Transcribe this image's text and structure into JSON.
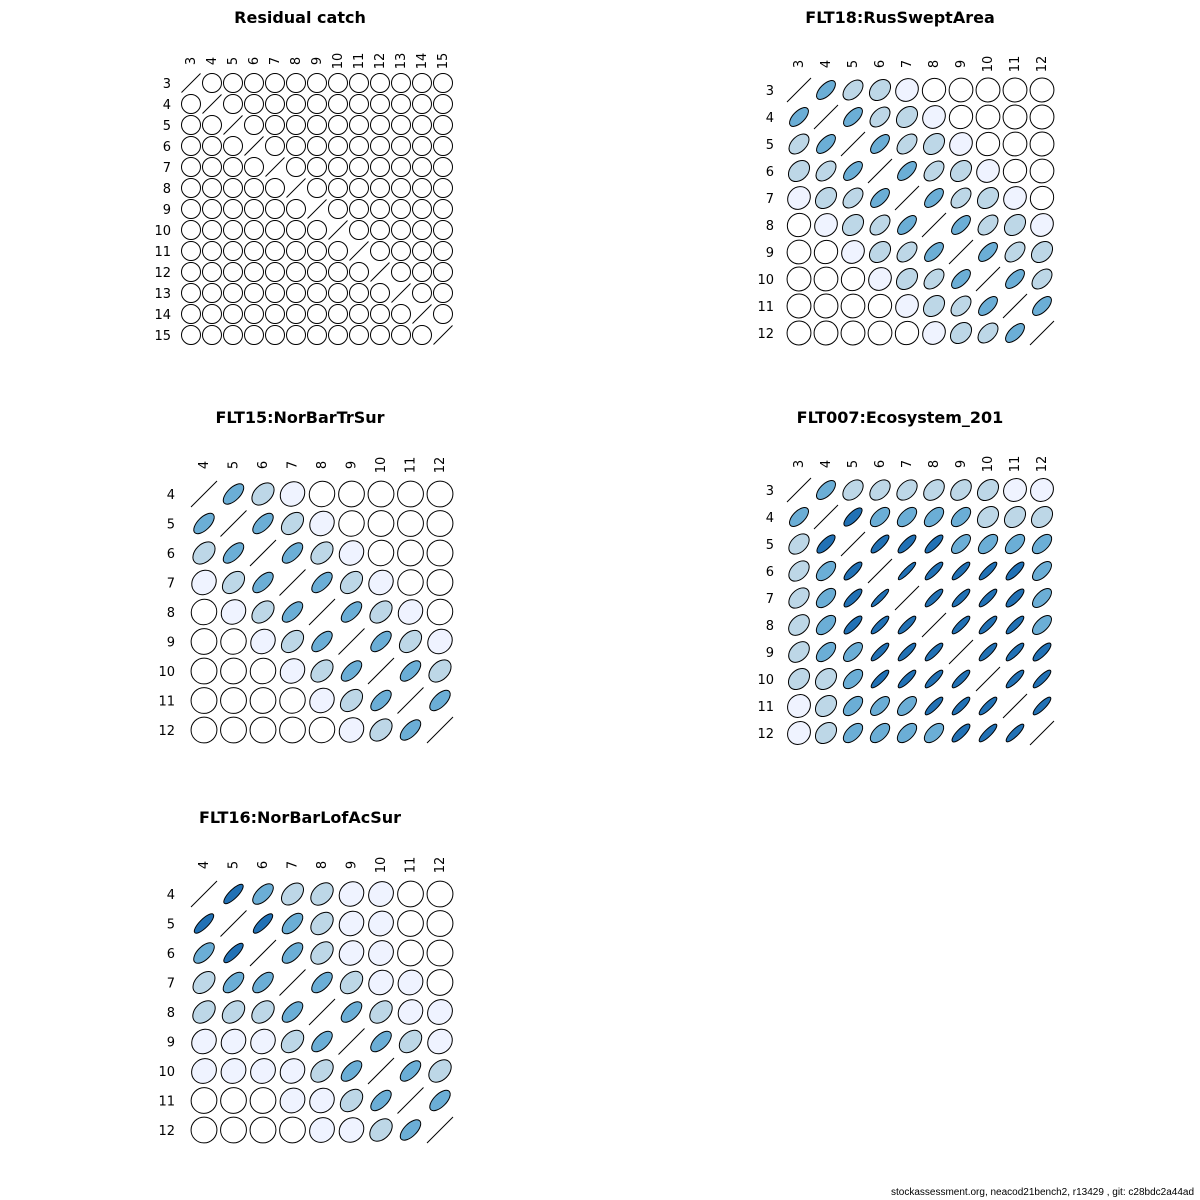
{
  "chart_data": [
    {
      "type": "heatmap",
      "title": "Residual catch",
      "labels": [
        "3",
        "4",
        "5",
        "6",
        "7",
        "8",
        "9",
        "10",
        "11",
        "12",
        "13",
        "14",
        "15"
      ],
      "correlation": "zero",
      "value": 0
    },
    {
      "type": "heatmap",
      "title": "FLT18:RusSweptArea",
      "labels": [
        "3",
        "4",
        "5",
        "6",
        "7",
        "8",
        "9",
        "10",
        "11",
        "12"
      ],
      "correlation": "lags",
      "lags": [
        1,
        0.62,
        0.45,
        0.3,
        0.12,
        0.06,
        0.02,
        0.01,
        0.01,
        0.01
      ]
    },
    {
      "type": "heatmap",
      "title": "FLT15:NorBarTrSur",
      "labels": [
        "4",
        "5",
        "6",
        "7",
        "8",
        "9",
        "10",
        "11",
        "12"
      ],
      "correlation": "lags",
      "lags": [
        1,
        0.62,
        0.38,
        0.13,
        0.04,
        0.02,
        0.01,
        0.01,
        0.01
      ]
    },
    {
      "type": "heatmap",
      "title": "FLT007:Ecosystem_201",
      "labels": [
        "3",
        "4",
        "5",
        "6",
        "7",
        "8",
        "9",
        "10",
        "11",
        "12"
      ],
      "correlation": "matrix",
      "matrix": [
        [
          1,
          0.6,
          0.4,
          0.4,
          0.4,
          0.35,
          0.35,
          0.3,
          0.1,
          0.1
        ],
        [
          0.6,
          1,
          0.75,
          0.55,
          0.55,
          0.55,
          0.55,
          0.3,
          0.3,
          0.3
        ],
        [
          0.4,
          0.75,
          1,
          0.8,
          0.8,
          0.8,
          0.6,
          0.55,
          0.55,
          0.55
        ],
        [
          0.4,
          0.55,
          0.8,
          1,
          0.9,
          0.85,
          0.85,
          0.85,
          0.8,
          0.6
        ],
        [
          0.4,
          0.55,
          0.8,
          0.9,
          1,
          0.85,
          0.85,
          0.85,
          0.8,
          0.6
        ],
        [
          0.35,
          0.55,
          0.8,
          0.85,
          0.85,
          1,
          0.85,
          0.85,
          0.85,
          0.6
        ],
        [
          0.35,
          0.55,
          0.6,
          0.85,
          0.85,
          0.85,
          1,
          0.85,
          0.85,
          0.8
        ],
        [
          0.3,
          0.3,
          0.55,
          0.85,
          0.85,
          0.85,
          0.85,
          1,
          0.85,
          0.85
        ],
        [
          0.1,
          0.3,
          0.55,
          0.6,
          0.6,
          0.85,
          0.85,
          0.85,
          1,
          0.85
        ],
        [
          0.1,
          0.3,
          0.55,
          0.55,
          0.55,
          0.55,
          0.8,
          0.85,
          0.85,
          1
        ]
      ]
    },
    {
      "type": "heatmap",
      "title": "FLT16:NorBarLofAcSur",
      "labels": [
        "4",
        "5",
        "6",
        "7",
        "8",
        "9",
        "10",
        "11",
        "12"
      ],
      "correlation": "matrix",
      "matrix": [
        [
          1,
          0.8,
          0.6,
          0.4,
          0.35,
          0.12,
          0.1,
          0.02,
          0.01
        ],
        [
          0.8,
          1,
          0.8,
          0.6,
          0.35,
          0.12,
          0.1,
          0.02,
          0.01
        ],
        [
          0.6,
          0.8,
          1,
          0.6,
          0.35,
          0.12,
          0.1,
          0.02,
          0.01
        ],
        [
          0.4,
          0.6,
          0.6,
          1,
          0.6,
          0.35,
          0.12,
          0.1,
          0.02
        ],
        [
          0.35,
          0.35,
          0.35,
          0.6,
          1,
          0.6,
          0.35,
          0.12,
          0.1
        ],
        [
          0.12,
          0.12,
          0.12,
          0.35,
          0.6,
          1,
          0.6,
          0.35,
          0.12
        ],
        [
          0.1,
          0.1,
          0.1,
          0.12,
          0.35,
          0.6,
          1,
          0.62,
          0.35
        ],
        [
          0.02,
          0.02,
          0.02,
          0.1,
          0.12,
          0.35,
          0.62,
          1,
          0.62
        ],
        [
          0.01,
          0.01,
          0.01,
          0.02,
          0.1,
          0.12,
          0.35,
          0.62,
          1
        ]
      ]
    }
  ],
  "colors": {
    "stroke": "#000000",
    "scale": [
      "#ffffff",
      "#eff3ff",
      "#bdd7e7",
      "#6baed6",
      "#2171b5"
    ]
  },
  "footer": "stockassessment.org, neacod21bench2, r13429 , git: c28bdc2a44ad"
}
